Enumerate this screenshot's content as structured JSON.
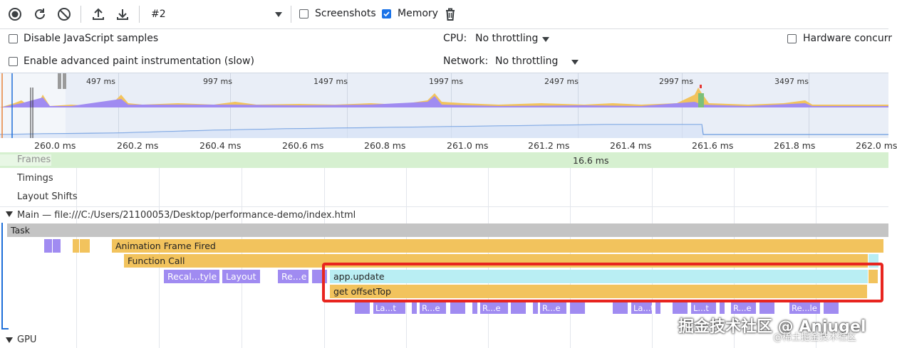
{
  "toolbar": {
    "recording_select": "#2",
    "screenshots_label": "Screenshots",
    "screenshots_checked": false,
    "memory_label": "Memory",
    "memory_checked": true
  },
  "settings": {
    "disable_js_samples": "Disable JavaScript samples",
    "enable_paint": "Enable advanced paint instrumentation (slow)",
    "cpu_label": "CPU:",
    "cpu_value": "No throttling",
    "network_label": "Network:",
    "network_value": "No throttling",
    "hardware_label": "Hardware concurr"
  },
  "overview": {
    "ticks": [
      "497 ms",
      "997 ms",
      "1497 ms",
      "1997 ms",
      "2497 ms",
      "2997 ms",
      "3497 ms"
    ]
  },
  "ruler": {
    "ticks": [
      "260.0 ms",
      "260.2 ms",
      "260.4 ms",
      "260.6 ms",
      "260.8 ms",
      "261.0 ms",
      "261.2 ms",
      "261.4 ms",
      "261.6 ms",
      "261.8 ms",
      "262.0 ms"
    ]
  },
  "tracks": {
    "frames": "Frames",
    "frame_duration": "16.6 ms",
    "timings": "Timings",
    "layout_shifts": "Layout Shifts",
    "main": "Main — file:///C:/Users/21100053/Desktop/performance-demo/index.html",
    "gpu": "GPU"
  },
  "flame": {
    "task": "Task",
    "animation_frame": "Animation Frame Fired",
    "function_call": "Function Call",
    "recalc_style": "Recal...tyle",
    "layout": "Layout",
    "re": "Re...e",
    "app_update": "app.update",
    "get_offset_top": "get offsetTop",
    "small": [
      "La...t",
      "R...e",
      "R...e",
      "R...e",
      "La...t",
      "L...t",
      "R...e",
      "Re...le"
    ]
  },
  "colors": {
    "scripting": "#f2c35d",
    "rendering": "#a08bf1",
    "highlight_box": "#e8251f",
    "frames_bg": "#d6f0d0",
    "task": "#c4c4c4"
  },
  "watermark": {
    "main": "掘金技术社区 @ Anjugel",
    "sub": "@稀土掘金技术社区"
  }
}
